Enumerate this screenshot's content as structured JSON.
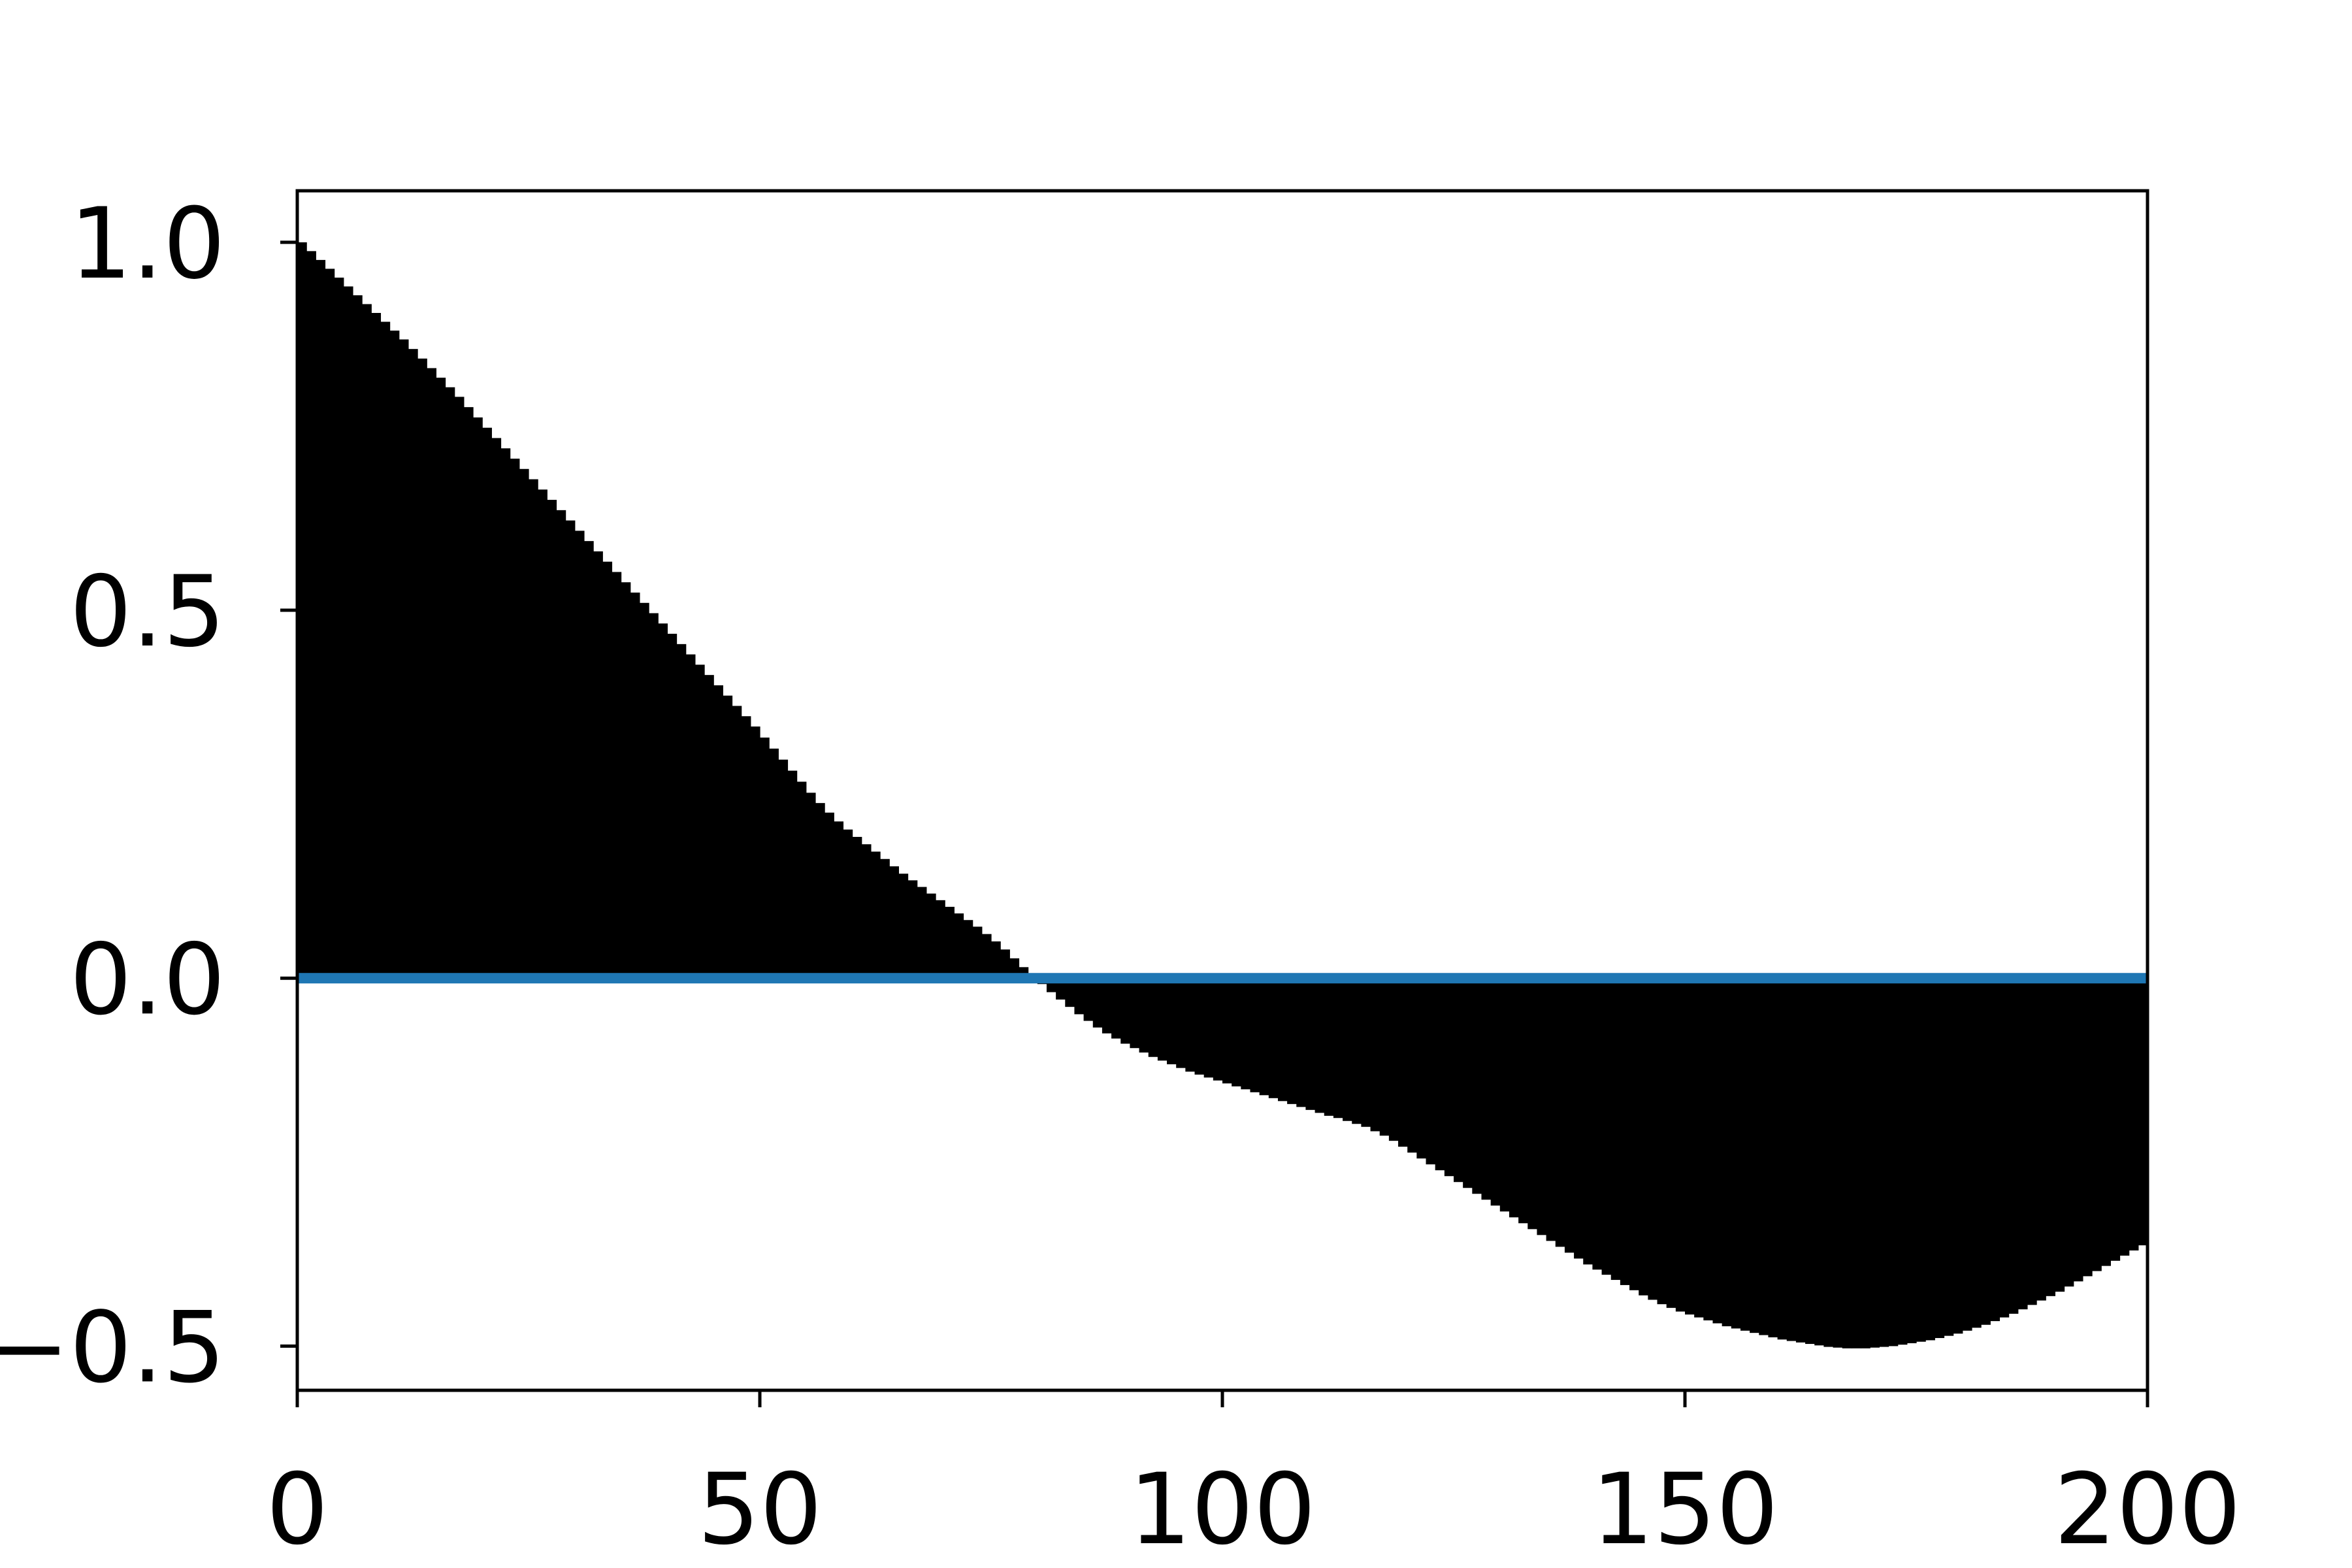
{
  "chart_data": {
    "type": "bar",
    "title": "",
    "xlabel": "",
    "ylabel": "",
    "xlim": [
      0,
      200
    ],
    "ylim": [
      -0.56,
      1.07
    ],
    "grid": false,
    "legend": "none",
    "x_ticks": [
      0,
      50,
      100,
      150,
      200
    ],
    "x_tick_labels": [
      "0",
      "50",
      "100",
      "150",
      "200"
    ],
    "y_ticks": [
      -0.5,
      0.0,
      0.5,
      1.0
    ],
    "y_tick_labels": [
      "−0.5",
      "0.0",
      "0.5",
      "1.0"
    ],
    "bar_color": "#000000",
    "baseline_color": "#1f77b4",
    "baseline_y": 0,
    "values": [
      1.0,
      0.988,
      0.976,
      0.964,
      0.952,
      0.94,
      0.928,
      0.916,
      0.904,
      0.892,
      0.88,
      0.868,
      0.855,
      0.842,
      0.829,
      0.816,
      0.803,
      0.79,
      0.776,
      0.762,
      0.748,
      0.734,
      0.72,
      0.706,
      0.692,
      0.678,
      0.664,
      0.65,
      0.636,
      0.622,
      0.608,
      0.594,
      0.58,
      0.566,
      0.552,
      0.538,
      0.524,
      0.51,
      0.496,
      0.482,
      0.468,
      0.454,
      0.44,
      0.426,
      0.412,
      0.398,
      0.384,
      0.37,
      0.356,
      0.342,
      0.327,
      0.312,
      0.297,
      0.282,
      0.267,
      0.252,
      0.238,
      0.225,
      0.213,
      0.202,
      0.192,
      0.182,
      0.172,
      0.162,
      0.152,
      0.142,
      0.133,
      0.124,
      0.115,
      0.106,
      0.097,
      0.088,
      0.079,
      0.07,
      0.06,
      0.05,
      0.039,
      0.027,
      0.015,
      0.004,
      -0.008,
      -0.019,
      -0.029,
      -0.039,
      -0.049,
      -0.058,
      -0.067,
      -0.075,
      -0.082,
      -0.089,
      -0.095,
      -0.101,
      -0.107,
      -0.112,
      -0.117,
      -0.122,
      -0.127,
      -0.131,
      -0.135,
      -0.139,
      -0.143,
      -0.147,
      -0.151,
      -0.155,
      -0.159,
      -0.163,
      -0.167,
      -0.171,
      -0.175,
      -0.179,
      -0.183,
      -0.187,
      -0.19,
      -0.194,
      -0.198,
      -0.202,
      -0.208,
      -0.214,
      -0.221,
      -0.229,
      -0.237,
      -0.245,
      -0.253,
      -0.261,
      -0.269,
      -0.277,
      -0.285,
      -0.293,
      -0.301,
      -0.309,
      -0.317,
      -0.325,
      -0.333,
      -0.341,
      -0.349,
      -0.357,
      -0.365,
      -0.373,
      -0.381,
      -0.389,
      -0.396,
      -0.403,
      -0.41,
      -0.417,
      -0.424,
      -0.431,
      -0.437,
      -0.443,
      -0.448,
      -0.453,
      -0.457,
      -0.461,
      -0.465,
      -0.469,
      -0.473,
      -0.476,
      -0.479,
      -0.482,
      -0.485,
      -0.488,
      -0.491,
      -0.493,
      -0.495,
      -0.497,
      -0.499,
      -0.501,
      -0.502,
      -0.503,
      -0.503,
      -0.503,
      -0.502,
      -0.501,
      -0.5,
      -0.498,
      -0.496,
      -0.494,
      -0.492,
      -0.489,
      -0.486,
      -0.483,
      -0.479,
      -0.475,
      -0.471,
      -0.466,
      -0.461,
      -0.456,
      -0.45,
      -0.444,
      -0.438,
      -0.432,
      -0.426,
      -0.419,
      -0.412,
      -0.405,
      -0.398,
      -0.391,
      -0.384,
      -0.377,
      -0.37,
      -0.363
    ]
  }
}
